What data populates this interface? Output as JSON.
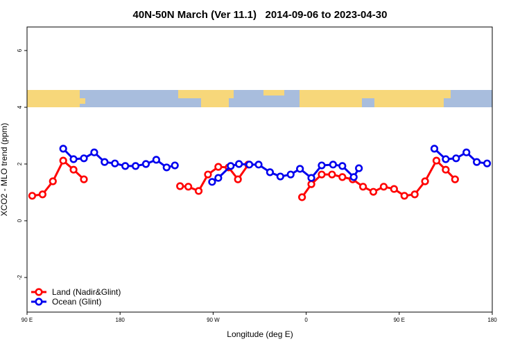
{
  "chart_data": {
    "type": "line",
    "title": "40N-50N March (Ver 11.1)   2014-09-06 to 2023-04-30",
    "x_label": "Longitude (deg E)",
    "y_label": "XCO2 - MLO trend (ppm)",
    "xlim": [
      90,
      540
    ],
    "xticks": [
      {
        "value": 90,
        "label": "90 E"
      },
      {
        "value": 180,
        "label": "180"
      },
      {
        "value": 270,
        "label": "90 W"
      },
      {
        "value": 360,
        "label": "0"
      },
      {
        "value": 450,
        "label": "90 E"
      },
      {
        "value": 540,
        "label": "180"
      }
    ],
    "ylim": [
      -3.22,
      6.83
    ],
    "yticks": [
      -2,
      0,
      2,
      4,
      6
    ],
    "legend": "bottom-left",
    "series": [
      {
        "name": "Land (Nadir&Glint)",
        "color": "#ff0000",
        "segments": [
          {
            "x": [
              95,
              105,
              115,
              125,
              135,
              145
            ],
            "values": [
              0.88,
              0.93,
              1.39,
              2.12,
              1.8,
              1.46
            ]
          },
          {
            "x": [
              238,
              246,
              256,
              265,
              275,
              285,
              294,
              304
            ],
            "values": [
              1.22,
              1.2,
              1.05,
              1.63,
              1.9,
              1.88,
              1.46,
              1.98
            ]
          },
          {
            "x": [
              356,
              365,
              375,
              385,
              395,
              405,
              415,
              425,
              435,
              445,
              455,
              465,
              475,
              486,
              495,
              504
            ],
            "values": [
              0.83,
              1.29,
              1.63,
              1.63,
              1.54,
              1.46,
              1.2,
              1.02,
              1.2,
              1.12,
              0.88,
              0.93,
              1.39,
              2.12,
              1.8,
              1.46
            ]
          }
        ]
      },
      {
        "name": "Ocean (Glint)",
        "color": "#0000ee",
        "segments": [
          {
            "x": [
              125,
              135,
              145,
              155,
              165,
              175,
              185,
              195,
              205,
              215,
              225,
              233
            ],
            "values": [
              2.54,
              2.17,
              2.2,
              2.41,
              2.07,
              2.02,
              1.93,
              1.93,
              2.0,
              2.15,
              1.88,
              1.95
            ]
          },
          {
            "x": [
              269,
              275,
              287,
              295,
              305,
              314,
              325,
              335,
              345,
              354,
              365,
              375,
              386,
              395,
              406,
              411
            ],
            "values": [
              1.37,
              1.51,
              1.93,
              2.0,
              1.98,
              1.98,
              1.71,
              1.56,
              1.63,
              1.83,
              1.51,
              1.95,
              1.98,
              1.93,
              1.54,
              1.85
            ]
          },
          {
            "x": [
              484,
              495,
              505,
              515,
              525,
              535
            ],
            "values": [
              2.54,
              2.17,
              2.2,
              2.41,
              2.07,
              2.02
            ]
          }
        ]
      }
    ]
  }
}
